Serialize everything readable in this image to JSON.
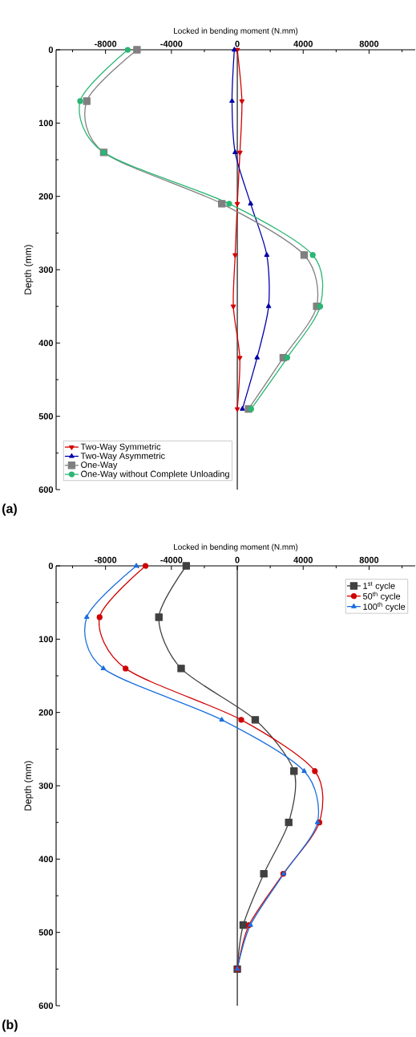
{
  "chart_data": [
    {
      "type": "line",
      "orientation": "horizontal",
      "xlabel": "Locked in bending moment (N.mm)",
      "ylabel": "Depth (mm)",
      "annotations": [
        "(a)"
      ],
      "xlim": [
        -11000,
        10800
      ],
      "ylim": [
        600,
        0
      ],
      "xticks": [
        {
          "value": -10000,
          "label": null
        },
        -8000,
        {
          "value": -6000,
          "label": null
        },
        -4000,
        {
          "value": -2000,
          "label": null
        },
        0,
        {
          "value": 2000,
          "label": null
        },
        4000,
        {
          "value": 6000,
          "label": null
        },
        8000,
        {
          "value": 10000,
          "label": null
        }
      ],
      "yticks": [
        0,
        {
          "value": 50,
          "label": null
        },
        100,
        {
          "value": 150,
          "label": null
        },
        200,
        {
          "value": 250,
          "label": null
        },
        300,
        {
          "value": 350,
          "label": null
        },
        400,
        {
          "value": 450,
          "label": null
        },
        500,
        {
          "value": 550,
          "label": null
        },
        600
      ],
      "x": [
        0,
        70,
        140,
        210,
        280,
        350,
        420,
        490
      ],
      "legend": "bottom left",
      "grid": false,
      "ref_lines": [
        {
          "axis": "x",
          "value": 0,
          "color": "#000000"
        }
      ],
      "series": [
        {
          "name": "Two-Way Symmetric",
          "color": "#d40000",
          "marker": "triangle-down",
          "values": [
            0,
            280,
            160,
            0,
            -130,
            -240,
            150,
            0
          ]
        },
        {
          "name": "Two-Way Asymmetric",
          "color": "#0000a8",
          "marker": "triangle",
          "values": [
            -180,
            -320,
            -130,
            810,
            1790,
            1900,
            1200,
            310
          ]
        },
        {
          "name": "One-Way",
          "color": "#808080",
          "marker": "square",
          "values": [
            -6090,
            -9140,
            -8110,
            -940,
            4060,
            4820,
            2790,
            680
          ]
        },
        {
          "name": "One-Way without Complete Unloading",
          "color": "#2ab673",
          "marker": "circle",
          "values": [
            -6650,
            -9540,
            -8110,
            -490,
            4580,
            5030,
            3030,
            840
          ]
        }
      ]
    },
    {
      "type": "line",
      "orientation": "horizontal",
      "xlabel": "Locked in bending moment (N.mm)",
      "ylabel": "Depth (mm)",
      "annotations": [
        "(b)"
      ],
      "xlim": [
        -11000,
        10800
      ],
      "ylim": [
        600,
        0
      ],
      "xticks": [
        {
          "value": -10000,
          "label": null
        },
        -8000,
        {
          "value": -6000,
          "label": null
        },
        -4000,
        {
          "value": -2000,
          "label": null
        },
        0,
        {
          "value": 2000,
          "label": null
        },
        4000,
        {
          "value": 6000,
          "label": null
        },
        8000,
        {
          "value": 10000,
          "label": null
        }
      ],
      "yticks": [
        0,
        {
          "value": 50,
          "label": null
        },
        100,
        {
          "value": 150,
          "label": null
        },
        200,
        {
          "value": 250,
          "label": null
        },
        300,
        {
          "value": 350,
          "label": null
        },
        400,
        {
          "value": 450,
          "label": null
        },
        500,
        {
          "value": 550,
          "label": null
        },
        600
      ],
      "x": [
        0,
        70,
        140,
        210,
        280,
        350,
        420,
        490,
        550
      ],
      "legend": "top right",
      "grid": false,
      "ref_lines": [
        {
          "axis": "x",
          "value": 0,
          "color": "#000000"
        }
      ],
      "series": [
        {
          "name": "1$^{st}$ cycle",
          "color": "#404040",
          "marker": "square",
          "values": [
            -3100,
            -4760,
            -3410,
            1090,
            3440,
            3120,
            1610,
            360,
            0
          ]
        },
        {
          "name": "50$^{th}$ cycle",
          "color": "#d00000",
          "marker": "circle",
          "values": [
            -5570,
            -8360,
            -6780,
            240,
            4710,
            4980,
            2790,
            710,
            0
          ]
        },
        {
          "name": "100$^{th}$ cycle",
          "color": "#1a6fe0",
          "marker": "triangle",
          "values": [
            -6130,
            -9140,
            -8130,
            -940,
            4060,
            4870,
            2820,
            800,
            0
          ]
        }
      ]
    }
  ]
}
